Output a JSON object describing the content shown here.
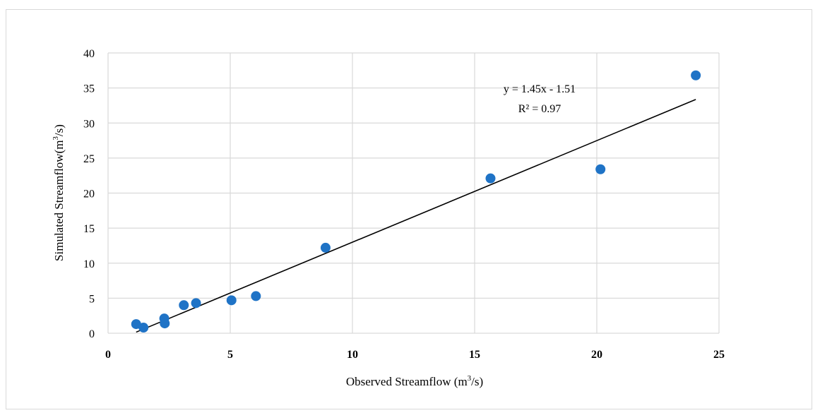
{
  "chart_data": {
    "type": "scatter",
    "title": "",
    "xlabel": "Observed Streamflow (m³/s)",
    "xlabel_main": "Observed Streamflow (m",
    "xlabel_sup": "3",
    "xlabel_tail": "/s)",
    "ylabel": "Simulated Streamflow(m³/s)",
    "ylabel_main": "Simulated Streamflow(m",
    "ylabel_sup": "3",
    "ylabel_tail": "/s)",
    "xlim": [
      0,
      25
    ],
    "ylim": [
      0,
      40
    ],
    "x_ticks": [
      0,
      5,
      10,
      15,
      20,
      25
    ],
    "y_ticks": [
      0,
      5,
      10,
      15,
      20,
      25,
      30,
      35,
      40
    ],
    "grid": true,
    "point_color": "#1f73c6",
    "points": [
      {
        "x": 1.15,
        "y": 1.3
      },
      {
        "x": 1.45,
        "y": 0.8
      },
      {
        "x": 2.3,
        "y": 2.1
      },
      {
        "x": 2.32,
        "y": 1.4
      },
      {
        "x": 3.1,
        "y": 4.0
      },
      {
        "x": 3.6,
        "y": 4.3
      },
      {
        "x": 5.05,
        "y": 4.7
      },
      {
        "x": 6.05,
        "y": 5.3
      },
      {
        "x": 8.9,
        "y": 12.2
      },
      {
        "x": 15.65,
        "y": 22.1
      },
      {
        "x": 20.15,
        "y": 23.4
      },
      {
        "x": 24.05,
        "y": 36.8
      }
    ],
    "trendline": {
      "slope": 1.45,
      "intercept": -1.51,
      "x_range": [
        1.15,
        24.05
      ],
      "equation": "y = 1.45x - 1.51",
      "r2": "R² = 0.97"
    }
  }
}
